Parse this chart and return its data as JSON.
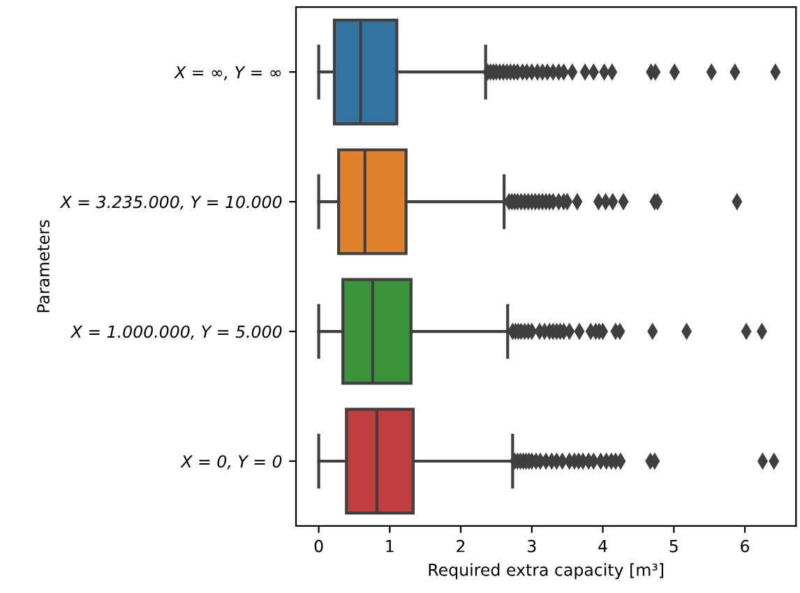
{
  "chart_data": {
    "type": "box",
    "orientation": "horizontal",
    "xlabel": "Required extra capacity [m³]",
    "ylabel": "Parameters",
    "categories": [
      "X = ∞, Y = ∞",
      "X = 3.235.000, Y = 10.000",
      "X = 1.000.000, Y = 5.000",
      "X = 0, Y = 0"
    ],
    "colors": [
      "#3274a1",
      "#e1812c",
      "#3a923a",
      "#c03d3e"
    ],
    "marker": "diamond",
    "xlim": [
      -0.32,
      6.72
    ],
    "xticks": [
      0,
      1,
      2,
      3,
      4,
      5,
      6
    ],
    "grid": false,
    "boxes": [
      {
        "low": 0,
        "q1": 0.22,
        "median": 0.59,
        "q3": 1.1,
        "high": 2.35,
        "outliers": [
          2.38,
          2.42,
          2.46,
          2.5,
          2.55,
          2.6,
          2.65,
          2.7,
          2.75,
          2.8,
          2.87,
          2.93,
          3.0,
          3.08,
          3.15,
          3.22,
          3.3,
          3.38,
          3.45,
          3.57,
          3.75,
          3.87,
          4.02,
          4.13,
          4.68,
          4.74,
          5.01,
          5.53,
          5.86,
          6.43
        ]
      },
      {
        "low": 0,
        "q1": 0.28,
        "median": 0.65,
        "q3": 1.23,
        "high": 2.61,
        "outliers": [
          2.68,
          2.72,
          2.76,
          2.8,
          2.85,
          2.9,
          2.95,
          3.0,
          3.05,
          3.1,
          3.15,
          3.2,
          3.25,
          3.3,
          3.38,
          3.45,
          3.5,
          3.64,
          3.94,
          4.04,
          4.14,
          4.29,
          4.73,
          4.77,
          5.89
        ]
      },
      {
        "low": 0,
        "q1": 0.34,
        "median": 0.76,
        "q3": 1.3,
        "high": 2.66,
        "outliers": [
          2.73,
          2.77,
          2.81,
          2.85,
          2.9,
          2.95,
          3.0,
          3.11,
          3.18,
          3.25,
          3.3,
          3.35,
          3.4,
          3.45,
          3.53,
          3.67,
          3.83,
          3.9,
          3.95,
          4.0,
          4.18,
          4.24,
          4.7,
          5.18,
          6.02,
          6.24
        ]
      },
      {
        "low": 0,
        "q1": 0.39,
        "median": 0.82,
        "q3": 1.33,
        "high": 2.73,
        "outliers": [
          2.76,
          2.8,
          2.84,
          2.88,
          2.92,
          2.96,
          3.0,
          3.06,
          3.12,
          3.2,
          3.28,
          3.35,
          3.43,
          3.53,
          3.6,
          3.66,
          3.72,
          3.8,
          3.87,
          3.97,
          4.05,
          4.12,
          4.18,
          4.25,
          4.67,
          4.73,
          6.25,
          6.41
        ]
      }
    ]
  }
}
